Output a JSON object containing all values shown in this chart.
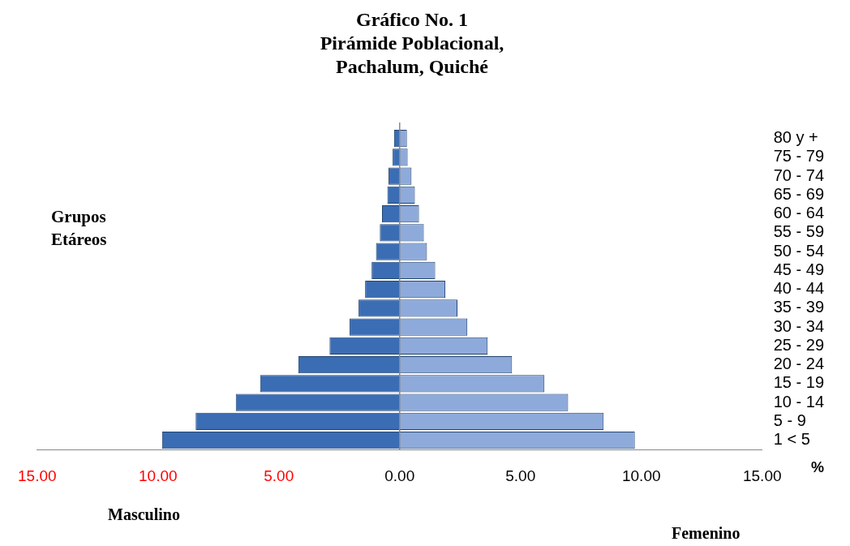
{
  "chart_data": {
    "type": "bar",
    "orientation": "horizontal",
    "stacked": true,
    "title": "Gráfico No. 1",
    "subtitle": "Pirámide Poblacional, Pachalum, Quiché",
    "ylabel": "Grupos Etáreos",
    "xlabel": "%",
    "categories": [
      "80 y +",
      "75 - 79",
      "70 - 74",
      "65 - 69",
      "60 - 64",
      "55 - 59",
      "50 - 54",
      "45 - 49",
      "40 - 44",
      "35 - 39",
      "30 - 34",
      "25 - 29",
      "20 - 24",
      "15 - 19",
      "10 - 14",
      "5 - 9",
      "1 < 5"
    ],
    "series": [
      {
        "color": "#3b6db4",
        "values": [
          -0.23,
          -0.29,
          -0.46,
          -0.51,
          -0.73,
          -0.82,
          -0.98,
          -1.16,
          -1.43,
          -1.7,
          -2.07,
          -2.9,
          -4.19,
          -5.77,
          -6.78,
          -8.44,
          -9.83
        ]
      },
      {
        "color": "#8eaadb",
        "values": [
          0.3,
          0.33,
          0.49,
          0.63,
          0.8,
          1.0,
          1.13,
          1.47,
          1.89,
          2.39,
          2.8,
          3.64,
          4.65,
          5.99,
          6.97,
          8.44,
          9.73
        ]
      }
    ],
    "xlim": [
      -15,
      15
    ],
    "xticks": [
      {
        "value": -15,
        "label": "15.00"
      },
      {
        "value": -10,
        "label": "10.00"
      },
      {
        "value": -5,
        "label": "5.00"
      },
      {
        "value": 0,
        "label": "0.00"
      },
      {
        "value": 5,
        "label": "5.00"
      },
      {
        "value": 10,
        "label": "10.00"
      },
      {
        "value": 15,
        "label": "15.00"
      }
    ],
    "ref_lines": [
      {
        "axis": "x",
        "value": 0,
        "color": "#888888"
      }
    ],
    "annotations": [
      "Masculino",
      "Femenino"
    ],
    "grid": false,
    "legend": false
  }
}
